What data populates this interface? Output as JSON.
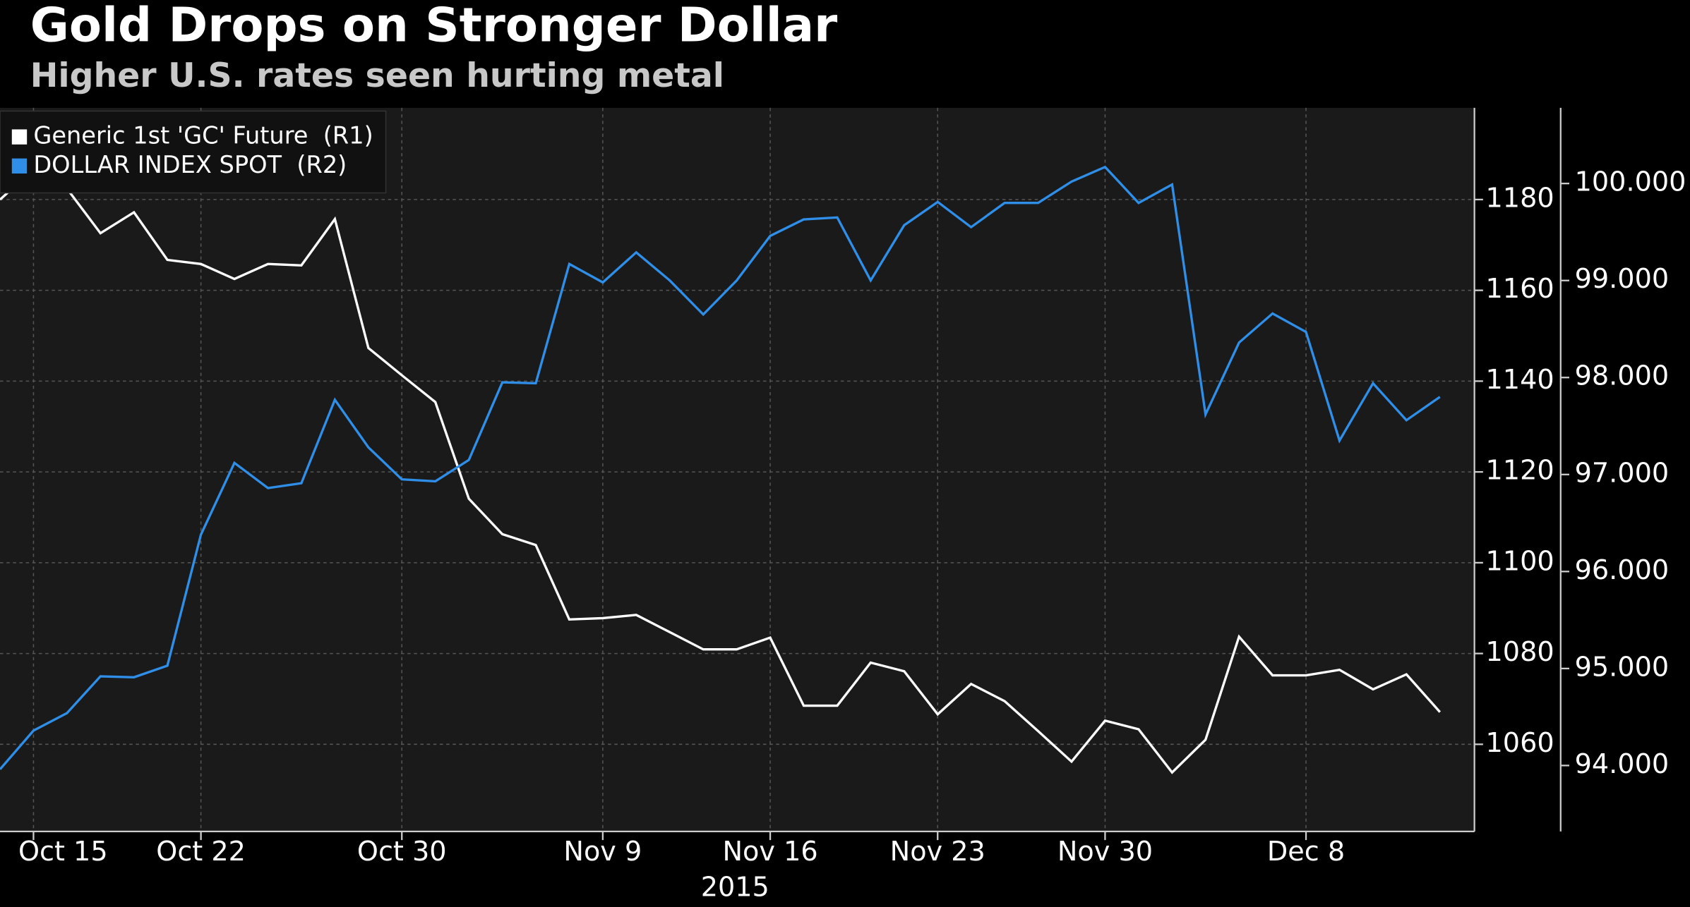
{
  "chart_data": {
    "type": "line",
    "title": "Gold Drops on Stronger Dollar",
    "subtitle": "Higher U.S. rates seen hurting metal",
    "xlabel": "2015",
    "x": [
      "2015-10-14",
      "2015-10-15",
      "2015-10-16",
      "2015-10-19",
      "2015-10-20",
      "2015-10-21",
      "2015-10-22",
      "2015-10-23",
      "2015-10-26",
      "2015-10-27",
      "2015-10-28",
      "2015-10-29",
      "2015-10-30",
      "2015-11-02",
      "2015-11-03",
      "2015-11-04",
      "2015-11-05",
      "2015-11-06",
      "2015-11-09",
      "2015-11-10",
      "2015-11-11",
      "2015-11-12",
      "2015-11-13",
      "2015-11-16",
      "2015-11-17",
      "2015-11-18",
      "2015-11-19",
      "2015-11-20",
      "2015-11-23",
      "2015-11-24",
      "2015-11-25",
      "2015-11-26",
      "2015-11-27",
      "2015-11-30",
      "2015-12-01",
      "2015-12-02",
      "2015-12-03",
      "2015-12-04",
      "2015-12-07",
      "2015-12-08",
      "2015-12-09",
      "2015-12-10",
      "2015-12-11",
      "2015-12-14"
    ],
    "xticks": [
      {
        "value": "2015-10-15",
        "label": "Oct 15"
      },
      {
        "value": "2015-10-22",
        "label": "Oct 22"
      },
      {
        "value": "2015-10-30",
        "label": "Oct 30"
      },
      {
        "value": "2015-11-09",
        "label": "Nov 9"
      },
      {
        "value": "2015-11-16",
        "label": "Nov 16"
      },
      {
        "value": "2015-11-23",
        "label": "Nov 23"
      },
      {
        "value": "2015-11-30",
        "label": "Nov 30"
      },
      {
        "value": "2015-12-08",
        "label": "Dec 8"
      }
    ],
    "series": [
      {
        "name": "Generic 1st 'GC' Future  (R1)",
        "color": "#ffffff",
        "axis": "y",
        "values": [
          1180,
          1186.6,
          1182.4,
          1172.6,
          1177.2,
          1166.7,
          1165.8,
          1162.5,
          1165.8,
          1165.5,
          1175.7,
          1147.3,
          1141.3,
          1135.4,
          1114.1,
          1106.3,
          1103.9,
          1087.5,
          1087.8,
          1088.5,
          1084.7,
          1080.9,
          1080.9,
          1083.5,
          1068.5,
          1068.5,
          1078,
          1076.1,
          1066.6,
          1073.3,
          1069.5,
          1062.9,
          1056.2,
          1065.2,
          1063.3,
          1053.8,
          1061,
          1083.7,
          1075.2,
          1075.2,
          1076.4,
          1072.1,
          1075.4,
          1067.1
        ]
      },
      {
        "name": "DOLLAR INDEX SPOT  (R2)",
        "color": "#2f8fe8",
        "axis": "y2",
        "values": [
          93.96,
          94.36,
          94.54,
          94.92,
          94.91,
          95.03,
          96.38,
          97.12,
          96.86,
          96.91,
          97.77,
          97.28,
          96.95,
          96.93,
          97.15,
          97.95,
          97.94,
          99.17,
          98.98,
          99.29,
          99.0,
          98.65,
          99.0,
          99.46,
          99.63,
          99.65,
          99.0,
          99.57,
          99.81,
          99.55,
          99.8,
          99.8,
          100.02,
          100.17,
          99.8,
          99.99,
          97.62,
          98.36,
          98.66,
          98.47,
          97.35,
          97.94,
          97.56,
          97.8
        ]
      }
    ],
    "ylim": [
      1040.8,
      1200.2
    ],
    "yticks": [
      1060,
      1080,
      1100,
      1120,
      1140,
      1160,
      1180
    ],
    "y2lim": [
      93.32,
      100.78
    ],
    "y2ticks": [
      {
        "value": 94,
        "label": "94.000"
      },
      {
        "value": 95,
        "label": "95.000"
      },
      {
        "value": 96,
        "label": "96.000"
      },
      {
        "value": 97,
        "label": "97.000"
      },
      {
        "value": 98,
        "label": "98.000"
      },
      {
        "value": 99,
        "label": "99.000"
      },
      {
        "value": 100,
        "label": "100.000"
      }
    ],
    "grid": true,
    "legend": "upper left"
  }
}
